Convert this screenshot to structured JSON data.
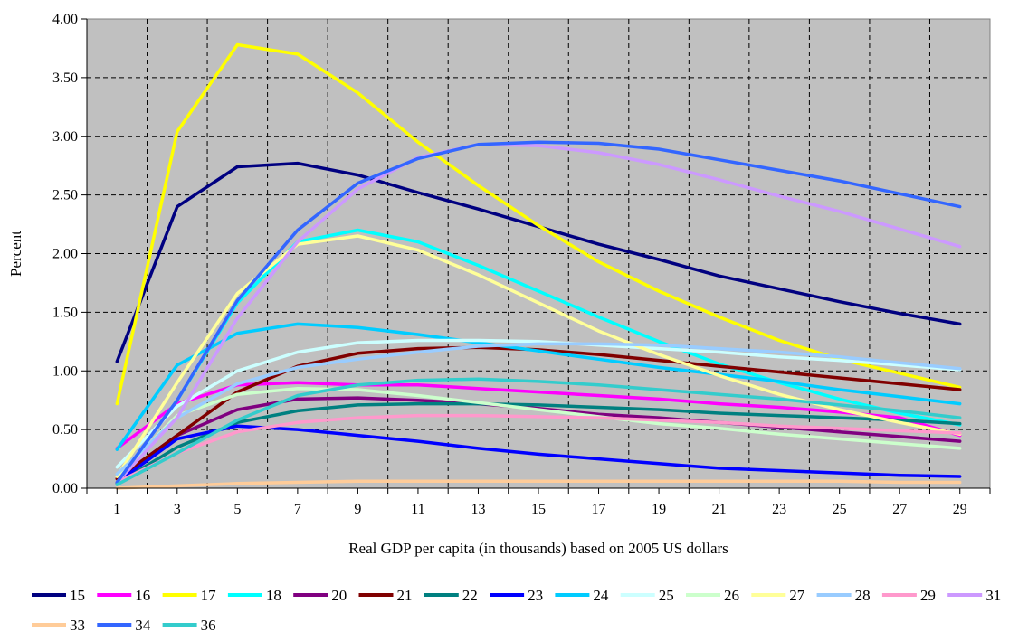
{
  "chart_data": {
    "type": "line",
    "title": "",
    "xlabel": "Real GDP per capita (in thousands) based on 2005 US dollars",
    "ylabel": "Percent",
    "xlim": [
      0,
      30
    ],
    "ylim": [
      0,
      4
    ],
    "grid": true,
    "plot_background": "#c0c0c0",
    "legend_position": "bottom",
    "x": [
      1,
      3,
      5,
      7,
      9,
      11,
      13,
      15,
      17,
      19,
      21,
      23,
      25,
      27,
      29
    ],
    "x_tick_labels": [
      "1",
      "3",
      "5",
      "7",
      "9",
      "11",
      "13",
      "15",
      "17",
      "19",
      "21",
      "23",
      "25",
      "27",
      "29"
    ],
    "y_tick_labels": [
      "0.00",
      "0.50",
      "1.00",
      "1.50",
      "2.00",
      "2.50",
      "3.00",
      "3.50",
      "4.00"
    ],
    "y_ticks": [
      0,
      0.5,
      1,
      1.5,
      2,
      2.5,
      3,
      3.5,
      4
    ],
    "series": [
      {
        "name": "15",
        "color": "#000080",
        "values": [
          1.08,
          2.4,
          2.74,
          2.77,
          2.67,
          2.52,
          2.38,
          2.23,
          2.08,
          1.95,
          1.81,
          1.7,
          1.59,
          1.49,
          1.4
        ]
      },
      {
        "name": "16",
        "color": "#ff00ff",
        "values": [
          0.34,
          0.72,
          0.88,
          0.9,
          0.88,
          0.88,
          0.85,
          0.82,
          0.79,
          0.76,
          0.72,
          0.69,
          0.65,
          0.6,
          0.45
        ]
      },
      {
        "name": "17",
        "color": "#ffff00",
        "values": [
          0.72,
          3.04,
          3.78,
          3.7,
          3.37,
          2.95,
          2.58,
          2.24,
          1.93,
          1.68,
          1.46,
          1.26,
          1.1,
          0.98,
          0.86
        ]
      },
      {
        "name": "18",
        "color": "#00ffff",
        "values": [
          0.05,
          0.75,
          1.58,
          2.1,
          2.2,
          2.1,
          1.9,
          1.68,
          1.46,
          1.25,
          1.06,
          0.9,
          0.76,
          0.64,
          0.54
        ]
      },
      {
        "name": "20",
        "color": "#800080",
        "values": [
          0.08,
          0.45,
          0.67,
          0.76,
          0.77,
          0.75,
          0.72,
          0.68,
          0.63,
          0.6,
          0.56,
          0.52,
          0.48,
          0.44,
          0.4
        ]
      },
      {
        "name": "21",
        "color": "#800000",
        "values": [
          0.08,
          0.45,
          0.82,
          1.04,
          1.15,
          1.19,
          1.2,
          1.18,
          1.14,
          1.09,
          1.04,
          0.99,
          0.94,
          0.89,
          0.84
        ]
      },
      {
        "name": "22",
        "color": "#008080",
        "values": [
          0.04,
          0.35,
          0.56,
          0.66,
          0.71,
          0.72,
          0.72,
          0.71,
          0.69,
          0.67,
          0.64,
          0.62,
          0.6,
          0.58,
          0.55
        ]
      },
      {
        "name": "23",
        "color": "#0000ff",
        "values": [
          0.05,
          0.42,
          0.53,
          0.5,
          0.45,
          0.4,
          0.34,
          0.29,
          0.25,
          0.21,
          0.17,
          0.15,
          0.13,
          0.11,
          0.1
        ]
      },
      {
        "name": "24",
        "color": "#00ccff",
        "values": [
          0.33,
          1.05,
          1.32,
          1.4,
          1.37,
          1.31,
          1.24,
          1.17,
          1.1,
          1.03,
          0.97,
          0.91,
          0.84,
          0.78,
          0.72
        ]
      },
      {
        "name": "25",
        "color": "#ccffff",
        "values": [
          0.18,
          0.7,
          1.0,
          1.16,
          1.24,
          1.26,
          1.26,
          1.25,
          1.22,
          1.19,
          1.16,
          1.12,
          1.09,
          1.05,
          1.01
        ]
      },
      {
        "name": "26",
        "color": "#ccffcc",
        "values": [
          0.1,
          0.62,
          0.8,
          0.85,
          0.84,
          0.79,
          0.73,
          0.67,
          0.61,
          0.55,
          0.51,
          0.46,
          0.42,
          0.38,
          0.34
        ]
      },
      {
        "name": "27",
        "color": "#ffff99",
        "values": [
          0.1,
          0.9,
          1.66,
          2.08,
          2.15,
          2.03,
          1.82,
          1.58,
          1.34,
          1.14,
          0.96,
          0.8,
          0.67,
          0.56,
          0.46
        ]
      },
      {
        "name": "28",
        "color": "#99ccff",
        "values": [
          0.12,
          0.6,
          0.89,
          1.03,
          1.1,
          1.16,
          1.21,
          1.23,
          1.23,
          1.22,
          1.19,
          1.16,
          1.12,
          1.07,
          1.02
        ]
      },
      {
        "name": "29",
        "color": "#ff99cc",
        "values": [
          0.05,
          0.3,
          0.48,
          0.56,
          0.6,
          0.62,
          0.62,
          0.61,
          0.6,
          0.58,
          0.56,
          0.53,
          0.51,
          0.49,
          0.47
        ]
      },
      {
        "name": "31",
        "color": "#cc99ff",
        "values": [
          0.05,
          0.6,
          1.45,
          2.1,
          2.55,
          2.82,
          2.93,
          2.92,
          2.86,
          2.76,
          2.63,
          2.49,
          2.36,
          2.21,
          2.06
        ]
      },
      {
        "name": "33",
        "color": "#ffcc99",
        "values": [
          0.0,
          0.02,
          0.04,
          0.05,
          0.06,
          0.06,
          0.06,
          0.06,
          0.06,
          0.06,
          0.06,
          0.06,
          0.06,
          0.05,
          0.05
        ]
      },
      {
        "name": "34",
        "color": "#3366ff",
        "values": [
          0.05,
          0.75,
          1.6,
          2.2,
          2.6,
          2.81,
          2.93,
          2.95,
          2.94,
          2.89,
          2.8,
          2.71,
          2.62,
          2.51,
          2.4
        ]
      },
      {
        "name": "36",
        "color": "#33cccc",
        "values": [
          0.03,
          0.3,
          0.58,
          0.79,
          0.88,
          0.92,
          0.93,
          0.91,
          0.88,
          0.84,
          0.8,
          0.76,
          0.71,
          0.66,
          0.6
        ]
      }
    ]
  }
}
